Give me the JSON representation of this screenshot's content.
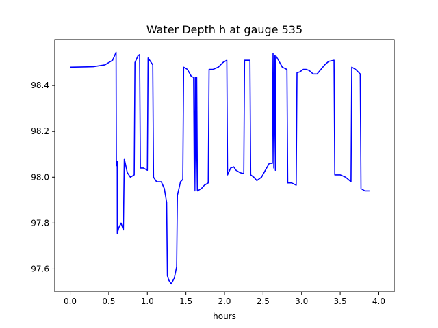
{
  "chart_data": {
    "type": "line",
    "title": "Water Depth h at gauge 535",
    "xlabel": "hours",
    "ylabel": "",
    "xlim": [
      -0.2,
      4.2
    ],
    "ylim": [
      97.5,
      98.6
    ],
    "xticks": [
      0.0,
      0.5,
      1.0,
      1.5,
      2.0,
      2.5,
      3.0,
      3.5,
      4.0
    ],
    "xtick_labels": [
      "0.0",
      "0.5",
      "1.0",
      "1.5",
      "2.0",
      "2.5",
      "3.0",
      "3.5",
      "4.0"
    ],
    "yticks": [
      97.6,
      97.8,
      98.0,
      98.2,
      98.4
    ],
    "ytick_labels": [
      "97.6",
      "97.8",
      "98.0",
      "98.2",
      "98.4"
    ],
    "grid": false,
    "legend": "none",
    "series": [
      {
        "color": "#0000ff",
        "points": [
          [
            0.0,
            98.48
          ],
          [
            0.3,
            98.482
          ],
          [
            0.45,
            98.49
          ],
          [
            0.55,
            98.51
          ],
          [
            0.595,
            98.545
          ],
          [
            0.598,
            98.05
          ],
          [
            0.61,
            98.07
          ],
          [
            0.611,
            97.755
          ],
          [
            0.63,
            97.78
          ],
          [
            0.66,
            97.8
          ],
          [
            0.69,
            97.77
          ],
          [
            0.701,
            98.08
          ],
          [
            0.74,
            98.02
          ],
          [
            0.78,
            98.0
          ],
          [
            0.83,
            98.01
          ],
          [
            0.84,
            98.5
          ],
          [
            0.88,
            98.53
          ],
          [
            0.9,
            98.535
          ],
          [
            0.91,
            98.04
          ],
          [
            0.95,
            98.04
          ],
          [
            1.0,
            98.03
          ],
          [
            1.01,
            98.52
          ],
          [
            1.05,
            98.5
          ],
          [
            1.07,
            98.49
          ],
          [
            1.08,
            98.0
          ],
          [
            1.12,
            97.98
          ],
          [
            1.18,
            97.98
          ],
          [
            1.22,
            97.95
          ],
          [
            1.25,
            97.89
          ],
          [
            1.26,
            97.57
          ],
          [
            1.28,
            97.55
          ],
          [
            1.31,
            97.535
          ],
          [
            1.35,
            97.56
          ],
          [
            1.38,
            97.61
          ],
          [
            1.39,
            97.92
          ],
          [
            1.43,
            97.98
          ],
          [
            1.46,
            97.99
          ],
          [
            1.47,
            98.48
          ],
          [
            1.52,
            98.47
          ],
          [
            1.57,
            98.44
          ],
          [
            1.6,
            98.435
          ],
          [
            1.61,
            97.94
          ],
          [
            1.62,
            98.435
          ],
          [
            1.63,
            97.94
          ],
          [
            1.64,
            98.435
          ],
          [
            1.65,
            97.94
          ],
          [
            1.7,
            97.95
          ],
          [
            1.74,
            97.965
          ],
          [
            1.79,
            97.975
          ],
          [
            1.8,
            98.47
          ],
          [
            1.85,
            98.47
          ],
          [
            1.92,
            98.48
          ],
          [
            1.98,
            98.5
          ],
          [
            2.03,
            98.51
          ],
          [
            2.04,
            98.01
          ],
          [
            2.08,
            98.04
          ],
          [
            2.12,
            98.045
          ],
          [
            2.15,
            98.03
          ],
          [
            2.2,
            98.02
          ],
          [
            2.25,
            98.015
          ],
          [
            2.26,
            98.51
          ],
          [
            2.3,
            98.51
          ],
          [
            2.33,
            98.51
          ],
          [
            2.34,
            98.01
          ],
          [
            2.38,
            98.0
          ],
          [
            2.42,
            97.985
          ],
          [
            2.48,
            98.0
          ],
          [
            2.53,
            98.03
          ],
          [
            2.58,
            98.06
          ],
          [
            2.62,
            98.06
          ],
          [
            2.63,
            98.54
          ],
          [
            2.64,
            98.04
          ],
          [
            2.65,
            98.53
          ],
          [
            2.66,
            98.03
          ],
          [
            2.665,
            98.53
          ],
          [
            2.7,
            98.51
          ],
          [
            2.75,
            98.48
          ],
          [
            2.81,
            98.47
          ],
          [
            2.82,
            97.975
          ],
          [
            2.87,
            97.975
          ],
          [
            2.93,
            97.965
          ],
          [
            2.94,
            98.455
          ],
          [
            2.98,
            98.46
          ],
          [
            3.02,
            98.47
          ],
          [
            3.06,
            98.47
          ],
          [
            3.1,
            98.465
          ],
          [
            3.15,
            98.45
          ],
          [
            3.2,
            98.45
          ],
          [
            3.25,
            98.47
          ],
          [
            3.3,
            98.49
          ],
          [
            3.35,
            98.505
          ],
          [
            3.42,
            98.51
          ],
          [
            3.43,
            98.01
          ],
          [
            3.5,
            98.01
          ],
          [
            3.57,
            98.0
          ],
          [
            3.64,
            97.98
          ],
          [
            3.65,
            98.48
          ],
          [
            3.7,
            98.47
          ],
          [
            3.76,
            98.45
          ],
          [
            3.77,
            97.95
          ],
          [
            3.82,
            97.94
          ],
          [
            3.88,
            97.94
          ]
        ]
      }
    ]
  }
}
